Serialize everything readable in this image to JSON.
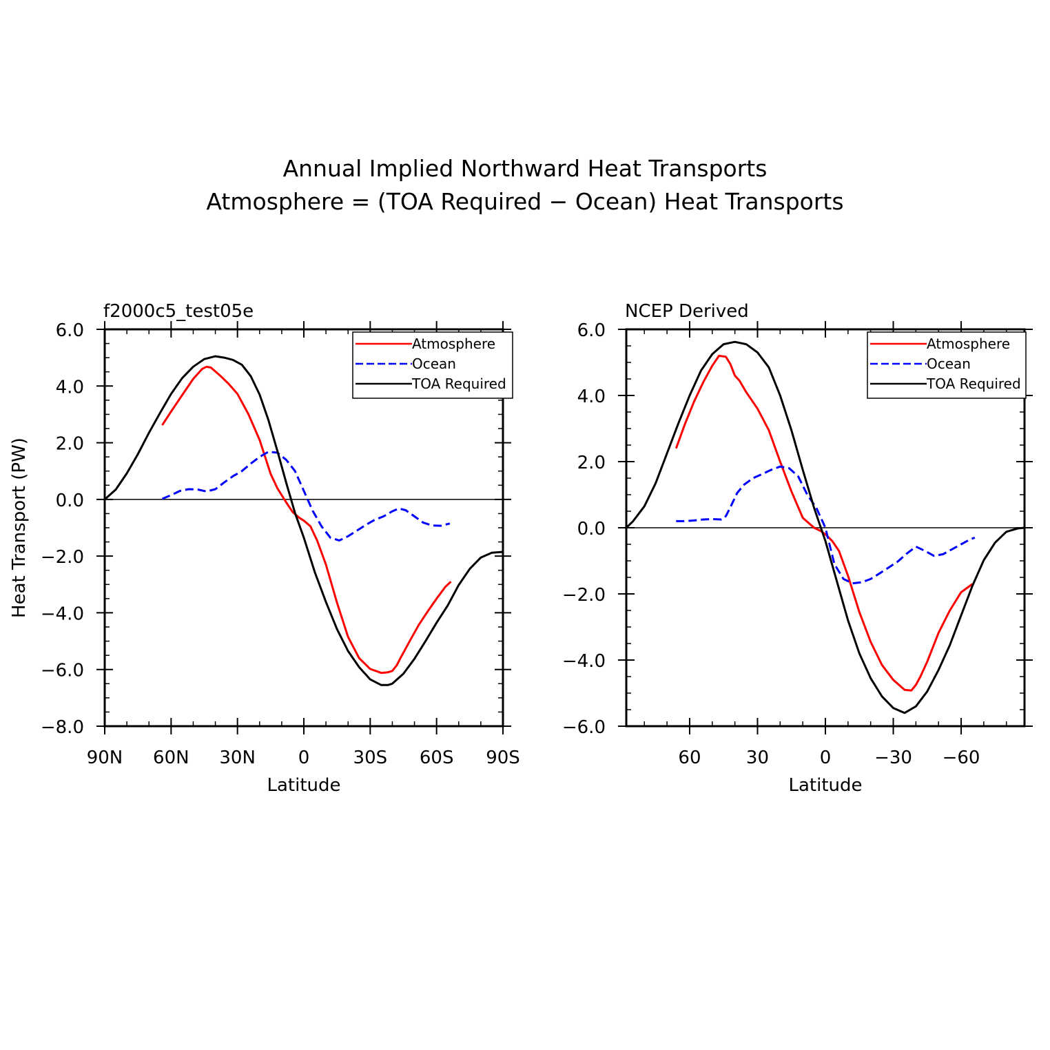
{
  "figure": {
    "title_line1": "Annual Implied Northward Heat Transports",
    "title_line2": "Atmosphere = (TOA Required − Ocean) Heat Transports"
  },
  "colors": {
    "atmosphere": "#ff0000",
    "ocean": "#0000ff",
    "toa": "#000000"
  },
  "chart_data": [
    {
      "type": "line",
      "title": "f2000c5_test05e",
      "xlabel": "Latitude",
      "ylabel": "Heat Transport (PW)",
      "xlim": [
        90,
        -90
      ],
      "ylim": [
        -8,
        6
      ],
      "x_ticks": [
        90,
        60,
        30,
        0,
        -30,
        -60,
        -90
      ],
      "x_tick_labels": [
        "90N",
        "60N",
        "30N",
        "0",
        "30S",
        "60S",
        "90S"
      ],
      "y_ticks": [
        6,
        4,
        2,
        0,
        -2,
        -4,
        -6,
        -8
      ],
      "y_tick_labels": [
        "6.0",
        "4.0",
        "2.0",
        "0.0",
        "−2.0",
        "−4.0",
        "−6.0",
        "−8.0"
      ],
      "zero_line": true,
      "legend_position": "top-right",
      "series": [
        {
          "name": "Atmosphere",
          "style": "solid",
          "color": "#ff0000",
          "x": [
            64,
            60,
            55,
            50,
            46,
            44,
            42,
            38,
            34,
            30,
            25,
            20,
            15,
            12,
            8,
            5,
            2,
            0,
            -3,
            -6,
            -10,
            -15,
            -20,
            -25,
            -30,
            -35,
            -38,
            -40,
            -42,
            -44,
            -48,
            -52,
            -56,
            -60,
            -64,
            -66.5
          ],
          "y": [
            2.62,
            3.1,
            3.68,
            4.25,
            4.6,
            4.68,
            4.65,
            4.38,
            4.08,
            3.72,
            3.0,
            2.1,
            0.9,
            0.4,
            -0.1,
            -0.45,
            -0.65,
            -0.75,
            -0.95,
            -1.45,
            -2.3,
            -3.65,
            -4.85,
            -5.6,
            -5.98,
            -6.12,
            -6.1,
            -6.05,
            -5.85,
            -5.55,
            -4.98,
            -4.42,
            -3.95,
            -3.5,
            -3.08,
            -2.9
          ]
        },
        {
          "name": "Ocean",
          "style": "dashed",
          "color": "#0000ff",
          "x": [
            64,
            60,
            56,
            52,
            48,
            44,
            40,
            36,
            32,
            28,
            24,
            20,
            16,
            12,
            8,
            4,
            0,
            -4,
            -8,
            -12,
            -16,
            -20,
            -24,
            -28,
            -32,
            -36,
            -40,
            -43,
            -46,
            -50,
            -54,
            -58,
            -62,
            -66
          ],
          "y": [
            0.02,
            0.15,
            0.3,
            0.36,
            0.35,
            0.28,
            0.36,
            0.6,
            0.82,
            1.0,
            1.26,
            1.5,
            1.68,
            1.65,
            1.4,
            1.0,
            0.3,
            -0.4,
            -0.95,
            -1.35,
            -1.45,
            -1.3,
            -1.1,
            -0.9,
            -0.72,
            -0.6,
            -0.42,
            -0.32,
            -0.38,
            -0.6,
            -0.82,
            -0.92,
            -0.93,
            -0.85
          ]
        },
        {
          "name": "TOA Required",
          "style": "solid",
          "color": "#000000",
          "x": [
            90,
            85,
            80,
            75,
            70,
            65,
            60,
            55,
            50,
            45,
            40,
            36,
            32,
            28,
            24,
            20,
            16,
            12,
            8,
            4,
            0,
            -5,
            -10,
            -15,
            -20,
            -25,
            -30,
            -35,
            -38,
            -40,
            -45,
            -50,
            -55,
            -60,
            -65,
            -70,
            -75,
            -80,
            -85,
            -90
          ],
          "y": [
            0.0,
            0.35,
            0.92,
            1.6,
            2.35,
            3.05,
            3.72,
            4.28,
            4.68,
            4.95,
            5.05,
            5.0,
            4.92,
            4.75,
            4.35,
            3.7,
            2.8,
            1.72,
            0.6,
            -0.48,
            -1.35,
            -2.58,
            -3.62,
            -4.58,
            -5.35,
            -5.92,
            -6.35,
            -6.55,
            -6.55,
            -6.5,
            -6.15,
            -5.62,
            -5.0,
            -4.35,
            -3.75,
            -3.02,
            -2.45,
            -2.05,
            -1.88,
            -1.85
          ]
        }
      ]
    },
    {
      "type": "line",
      "title": "NCEP Derived",
      "xlabel": "Latitude",
      "ylabel": "",
      "xlim": [
        88,
        -88
      ],
      "ylim": [
        -6,
        6
      ],
      "x_ticks": [
        60,
        30,
        0,
        -30,
        -60
      ],
      "x_tick_labels": [
        "60",
        "30",
        "0",
        "−30",
        "−60"
      ],
      "y_ticks": [
        6,
        4,
        2,
        0,
        -2,
        -4,
        -6
      ],
      "y_tick_labels": [
        "6.0",
        "4.0",
        "2.0",
        "0.0",
        "−2.0",
        "−4.0",
        "−6.0"
      ],
      "zero_line": true,
      "legend_position": "top-right",
      "series": [
        {
          "name": "Atmosphere",
          "style": "solid",
          "color": "#ff0000",
          "x": [
            66,
            62,
            58,
            54,
            50,
            47,
            44,
            42,
            40,
            38,
            35,
            30,
            25,
            20,
            15,
            10,
            5,
            2,
            0,
            -3,
            -6,
            -10,
            -15,
            -20,
            -25,
            -30,
            -35,
            -38,
            -40,
            -42,
            -45,
            -50,
            -55,
            -60,
            -65
          ],
          "y": [
            2.4,
            3.15,
            3.82,
            4.4,
            4.9,
            5.2,
            5.17,
            4.95,
            4.6,
            4.45,
            4.1,
            3.6,
            2.95,
            2.0,
            1.1,
            0.3,
            0.0,
            -0.1,
            -0.2,
            -0.4,
            -0.7,
            -1.45,
            -2.55,
            -3.45,
            -4.15,
            -4.6,
            -4.9,
            -4.92,
            -4.75,
            -4.5,
            -4.05,
            -3.18,
            -2.5,
            -1.95,
            -1.7
          ]
        },
        {
          "name": "Ocean",
          "style": "dashed",
          "color": "#0000ff",
          "x": [
            66,
            62,
            58,
            54,
            50,
            46,
            44,
            42,
            39,
            36,
            32,
            28,
            24,
            20,
            16,
            12,
            8,
            4,
            0,
            -4,
            -8,
            -12,
            -16,
            -20,
            -24,
            -28,
            -32,
            -36,
            -40,
            -44,
            -48,
            -52,
            -56,
            -60,
            -64,
            -66
          ],
          "y": [
            0.2,
            0.2,
            0.22,
            0.25,
            0.26,
            0.25,
            0.35,
            0.62,
            1.05,
            1.3,
            1.5,
            1.62,
            1.75,
            1.85,
            1.8,
            1.55,
            1.0,
            0.6,
            0.0,
            -1.1,
            -1.55,
            -1.68,
            -1.65,
            -1.55,
            -1.38,
            -1.2,
            -1.02,
            -0.78,
            -0.57,
            -0.7,
            -0.85,
            -0.8,
            -0.65,
            -0.5,
            -0.35,
            -0.3
          ]
        },
        {
          "name": "TOA Required",
          "style": "solid",
          "color": "#000000",
          "x": [
            88,
            85,
            80,
            75,
            70,
            65,
            60,
            55,
            50,
            45,
            40,
            35,
            30,
            25,
            20,
            15,
            10,
            5,
            0,
            -5,
            -10,
            -15,
            -20,
            -25,
            -30,
            -35,
            -40,
            -45,
            -50,
            -55,
            -60,
            -65,
            -70,
            -75,
            -80,
            -85,
            -88
          ],
          "y": [
            0.0,
            0.2,
            0.65,
            1.35,
            2.25,
            3.15,
            4.0,
            4.75,
            5.25,
            5.55,
            5.62,
            5.55,
            5.3,
            4.85,
            4.0,
            2.95,
            1.75,
            0.6,
            -0.4,
            -1.6,
            -2.8,
            -3.8,
            -4.55,
            -5.1,
            -5.45,
            -5.6,
            -5.4,
            -4.95,
            -4.3,
            -3.55,
            -2.65,
            -1.75,
            -0.98,
            -0.45,
            -0.12,
            -0.02,
            0.0
          ]
        }
      ]
    }
  ]
}
